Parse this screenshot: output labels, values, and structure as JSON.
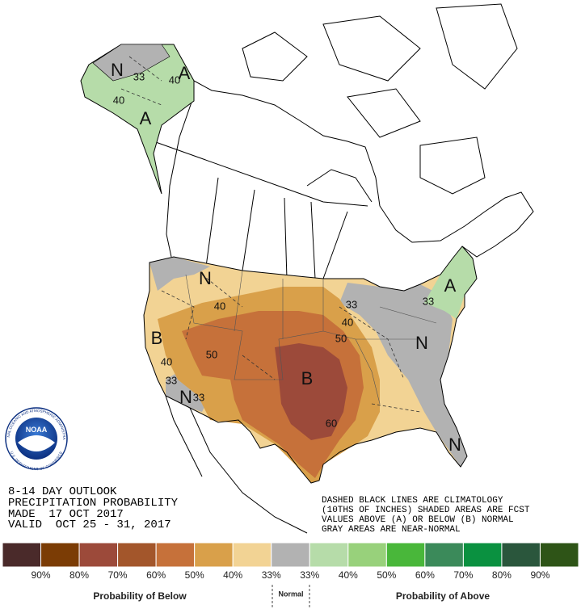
{
  "map": {
    "labels": [
      "N",
      "33",
      "40",
      "A",
      "40",
      "A",
      "N",
      "40",
      "33",
      "40",
      "50",
      "B",
      "50",
      "40",
      "N",
      "A",
      "33",
      "B",
      "33",
      "N",
      "33",
      "60",
      "N"
    ]
  },
  "logo": {
    "name": "NOAA",
    "ring_top": "NATIONAL OCEANIC AND ATMOSPHERIC ADMINISTRATION",
    "ring_bottom": "U.S. DEPARTMENT OF COMMERCE"
  },
  "title_block": [
    "8-14 DAY OUTLOOK",
    "PRECIPITATION PROBABILITY",
    "MADE  17 OCT 2017",
    "VALID  OCT 25 - 31, 2017"
  ],
  "notes": [
    "DASHED BLACK LINES ARE CLIMATOLOGY",
    "(10THS OF INCHES) SHADED AREAS ARE FCST",
    "VALUES ABOVE (A) OR BELOW (B) NORMAL",
    "GRAY AREAS ARE NEAR-NORMAL"
  ],
  "legend": {
    "colors": [
      "#4a2a2a",
      "#7b3c05",
      "#9c4a3a",
      "#a3562b",
      "#c6713a",
      "#d9a04a",
      "#f2d394",
      "#b2b2b2",
      "#b6dca9",
      "#98d17b",
      "#49b73a",
      "#3b8a5a",
      "#0a9140",
      "#2a563c",
      "#2e5417"
    ],
    "labels": [
      "90%",
      "80%",
      "70%",
      "60%",
      "50%",
      "40%",
      "33%",
      "33%",
      "40%",
      "50%",
      "60%",
      "70%",
      "80%",
      "90%"
    ],
    "below_title": "Probability of Below",
    "normal_title": "Normal",
    "above_title": "Probability of Above"
  }
}
